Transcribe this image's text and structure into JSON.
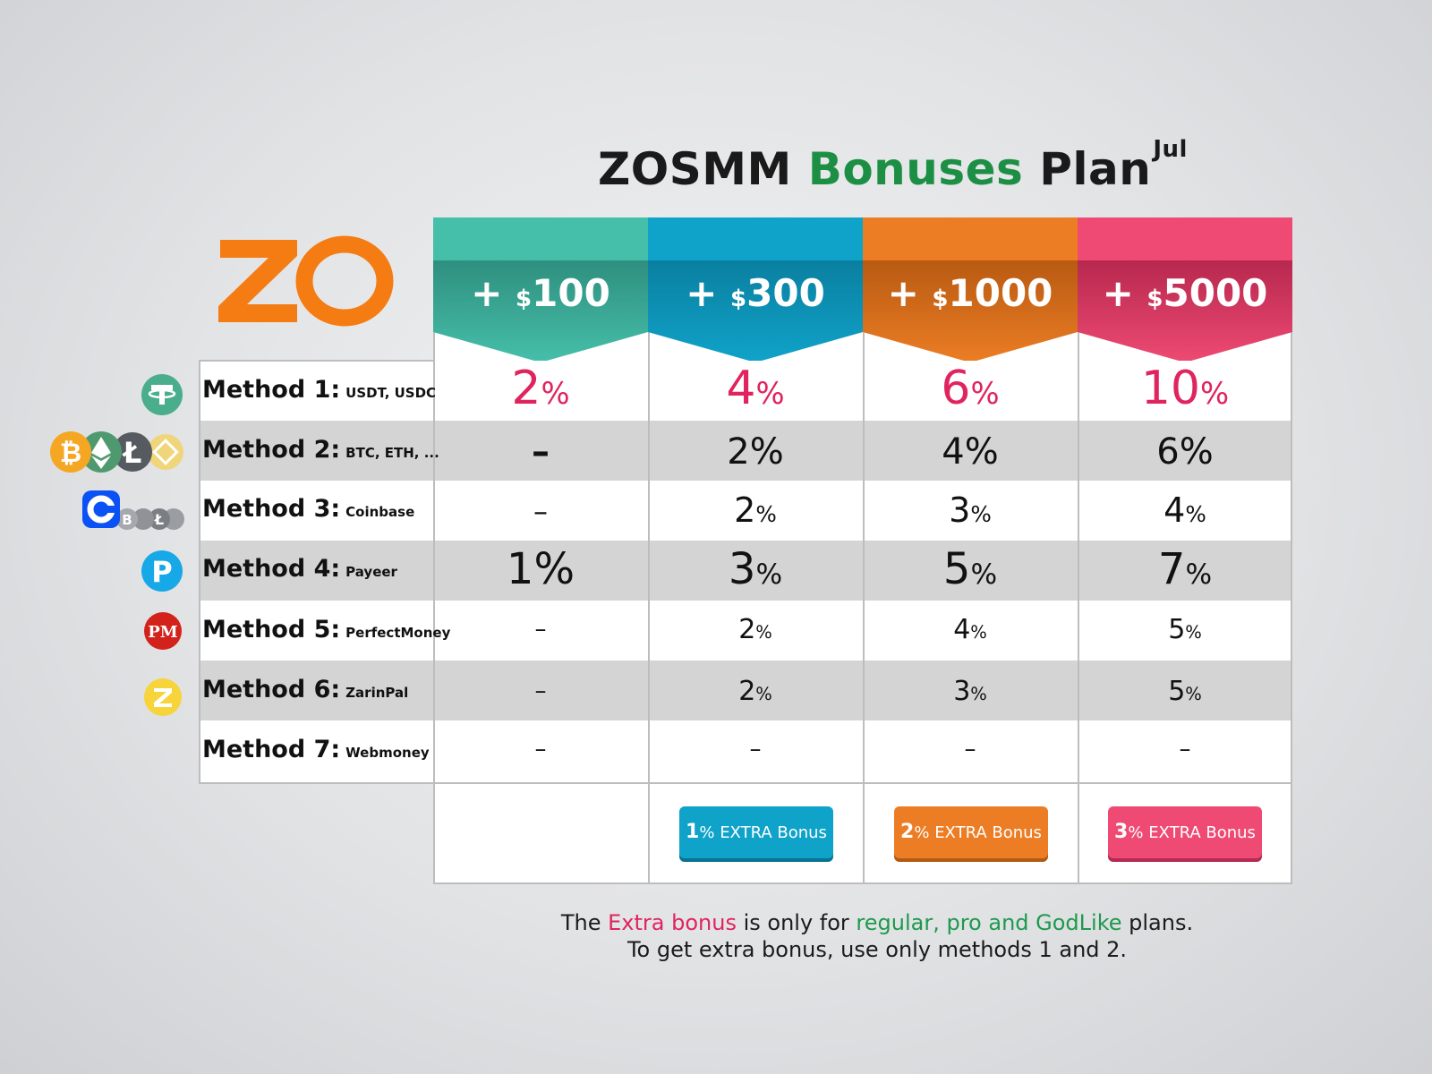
{
  "title": {
    "part1": "ZOSMM",
    "part2": "Bonuses",
    "part3": "Plan",
    "sup": "Jul"
  },
  "logo_text": "ZO",
  "colors": {
    "teal": "#45bfa9",
    "blue": "#10a3c9",
    "orange": "#ec7d24",
    "pink": "#ee4a73",
    "accent_pink": "#e0245e",
    "green": "#1d8f45"
  },
  "plans": [
    {
      "plus": "+",
      "currency": "$",
      "amount": "100"
    },
    {
      "plus": "+",
      "currency": "$",
      "amount": "300"
    },
    {
      "plus": "+",
      "currency": "$",
      "amount": "1000"
    },
    {
      "plus": "+",
      "currency": "$",
      "amount": "5000"
    }
  ],
  "methods": [
    {
      "name": "Method 1:",
      "sub": "USDT, USDC",
      "icon": "tether-icon",
      "values": [
        "2",
        "4",
        "6",
        "10"
      ],
      "unit": "%"
    },
    {
      "name": "Method 2:",
      "sub": "BTC, ETH, ...",
      "icon": "crypto-coins-icon",
      "values": [
        "–",
        "2%",
        "4%",
        "6%"
      ]
    },
    {
      "name": "Method 3:",
      "sub": "Coinbase",
      "icon": "coinbase-icon",
      "values": [
        "–",
        "2",
        "3",
        "4"
      ],
      "unit": "%"
    },
    {
      "name": "Method 4:",
      "sub": "Payeer",
      "icon": "payeer-icon",
      "values": [
        "1%",
        "3",
        "5",
        "7"
      ],
      "unit": "%"
    },
    {
      "name": "Method 5:",
      "sub": "PerfectMoney",
      "icon": "perfectmoney-icon",
      "values": [
        "–",
        "2",
        "4",
        "5"
      ],
      "unit": "%"
    },
    {
      "name": "Method 6:",
      "sub": "ZarinPal",
      "icon": "zarinpal-icon",
      "values": [
        "–",
        "2",
        "3",
        "5"
      ],
      "unit": "%"
    },
    {
      "name": "Method 7:",
      "sub": "Webmoney",
      "values": [
        "–",
        "–",
        "–",
        "–"
      ]
    }
  ],
  "extra_bonus": [
    {
      "num": "1",
      "unit": "%",
      "label": "EXTRA Bonus"
    },
    {
      "num": "2",
      "unit": "%",
      "label": "EXTRA Bonus"
    },
    {
      "num": "3",
      "unit": "%",
      "label": "EXTRA Bonus"
    }
  ],
  "footer": {
    "l1a": "The ",
    "l1b": "Extra bonus",
    "l1c": " is only for ",
    "l1d": "regular, pro and GodLike",
    "l1e": " plans.",
    "l2": "To get extra bonus, use only methods 1 and 2."
  }
}
